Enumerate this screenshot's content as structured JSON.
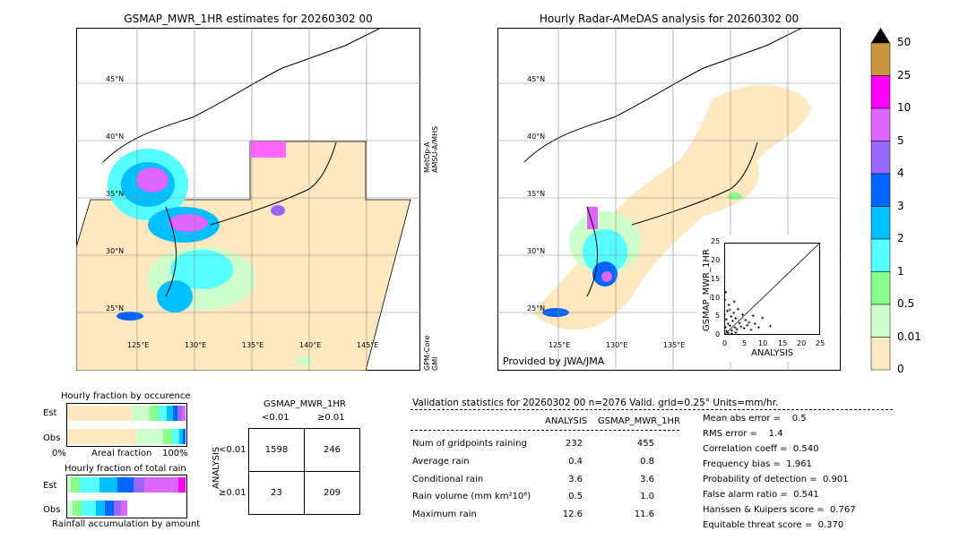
{
  "left_map": {
    "title": "GSMAP_MWR_1HR estimates for 20260302 00",
    "lat_labels": [
      "45°N",
      "40°N",
      "35°N",
      "30°N",
      "25°N"
    ],
    "lon_labels": [
      "125°E",
      "130°E",
      "135°E",
      "140°E",
      "145°E"
    ],
    "sensor_top": "MetOp-A AMSU-A/MHS",
    "sensor_bottom": "GPM-Core GMI"
  },
  "right_map": {
    "title": "Hourly Radar-AMeDAS analysis for 20260302 00",
    "lat_labels": [
      "45°N",
      "40°N",
      "35°N",
      "30°N",
      "25°N"
    ],
    "lon_labels": [
      "125°E",
      "130°E",
      "135°E"
    ],
    "credit": "Provided by JWA/JMA"
  },
  "scatter": {
    "xlabel": "ANALYSIS",
    "ylabel": "GSMAP_MWR_1HR",
    "ticks": [
      "0",
      "5",
      "10",
      "15",
      "20",
      "25"
    ]
  },
  "colorbar": {
    "labels": [
      "50",
      "25",
      "10",
      "5",
      "4",
      "3",
      "2",
      "1",
      "0.5",
      "0.01",
      "0"
    ],
    "colors": [
      "#c8963c",
      "#ff00ff",
      "#dd66ff",
      "#9966ff",
      "#0064ff",
      "#00bfff",
      "#55ffff",
      "#88ff88",
      "#ccffcc",
      "#ffe9c0"
    ]
  },
  "fraction_occ": {
    "title": "Hourly fraction by occurence",
    "rows": [
      "Est",
      "Obs"
    ],
    "xaxis_left": "0%",
    "xaxis_mid": "Areal fraction",
    "xaxis_right": "100%"
  },
  "fraction_rain": {
    "title": "Hourly fraction of total rain",
    "rows": [
      "Est",
      "Obs"
    ],
    "footer": "Rainfall accumulation by amount"
  },
  "contingency": {
    "title": "GSMAP_MWR_1HR",
    "col_lt": "<0.01",
    "col_ge": "≥0.01",
    "row_axis": "ANALYSIS",
    "row_lt": "<0.01",
    "row_ge": "≥0.01",
    "cells": [
      "1598",
      "246",
      "23",
      "209"
    ]
  },
  "validation": {
    "header": "Validation statistics for 20260302 00  n=2076 Valid. grid=0.25° Units=mm/hr.",
    "col_analysis": "ANALYSIS",
    "col_gsmap": "GSMAP_MWR_1HR",
    "rows": [
      {
        "label": "Num of gridpoints raining",
        "a": "232",
        "g": "455"
      },
      {
        "label": "Average rain",
        "a": "0.4",
        "g": "0.8"
      },
      {
        "label": "Conditional rain",
        "a": "3.6",
        "g": "3.6"
      },
      {
        "label": "Rain volume (mm km²10⁶)",
        "a": "0.5",
        "g": "1.0"
      },
      {
        "label": "Maximum rain",
        "a": "12.6",
        "g": "11.6"
      }
    ],
    "scores": [
      "Mean abs error =    0.5",
      "RMS error =    1.4",
      "Correlation coeff =  0.540",
      "Frequency bias =  1.961",
      "Probability of detection =  0.901",
      "False alarm ratio =  0.541",
      "Hanssen & Kuipers score =  0.767",
      "Equitable threat score =  0.370"
    ]
  },
  "chart_data": [
    {
      "type": "table",
      "title": "GSMAP_MWR_1HR",
      "rows": [
        "<0.01",
        "≥0.01"
      ],
      "columns": [
        "<0.01",
        "≥0.01"
      ],
      "values": [
        [
          1598,
          246
        ],
        [
          23,
          209
        ]
      ]
    },
    {
      "type": "table",
      "columns": [
        "ANALYSIS",
        "GSMAP_MWR_1HR"
      ],
      "rows": [
        "Num of gridpoints raining",
        "Average rain",
        "Conditional rain",
        "Rain volume (mm km²10⁶)",
        "Maximum rain"
      ],
      "values": [
        [
          232,
          455
        ],
        [
          0.4,
          0.8
        ],
        [
          3.6,
          3.6
        ],
        [
          0.5,
          1.0
        ],
        [
          12.6,
          11.6
        ]
      ]
    },
    {
      "type": "scatter",
      "xlabel": "ANALYSIS",
      "ylabel": "GSMAP_MWR_1HR",
      "xlim": [
        0,
        25
      ],
      "ylim": [
        0,
        25
      ],
      "points": [
        [
          0.3,
          2.1
        ],
        [
          0.5,
          4.2
        ],
        [
          0.6,
          1.0
        ],
        [
          0.8,
          6.5
        ],
        [
          1.0,
          3.0
        ],
        [
          1.2,
          8.1
        ],
        [
          1.5,
          2.5
        ],
        [
          1.8,
          5.0
        ],
        [
          2.0,
          1.2
        ],
        [
          2.2,
          3.8
        ],
        [
          2.5,
          6.0
        ],
        [
          2.8,
          2.0
        ],
        [
          3.0,
          4.5
        ],
        [
          3.3,
          1.5
        ],
        [
          3.6,
          7.0
        ],
        [
          4.0,
          3.2
        ],
        [
          4.4,
          2.2
        ],
        [
          4.8,
          5.5
        ],
        [
          5.2,
          1.8
        ],
        [
          5.6,
          4.0
        ],
        [
          6.0,
          2.6
        ],
        [
          6.5,
          3.4
        ],
        [
          7.0,
          1.4
        ],
        [
          7.5,
          5.2
        ],
        [
          8.0,
          3.0
        ],
        [
          9.0,
          2.0
        ],
        [
          10.0,
          4.6
        ],
        [
          12.0,
          2.4
        ],
        [
          0.2,
          9.5
        ],
        [
          0.4,
          11.6
        ],
        [
          1.0,
          0.5
        ],
        [
          2.0,
          0.3
        ],
        [
          3.0,
          0.6
        ],
        [
          0.1,
          5.5
        ],
        [
          1.4,
          6.8
        ],
        [
          2.6,
          9.0
        ]
      ]
    }
  ]
}
